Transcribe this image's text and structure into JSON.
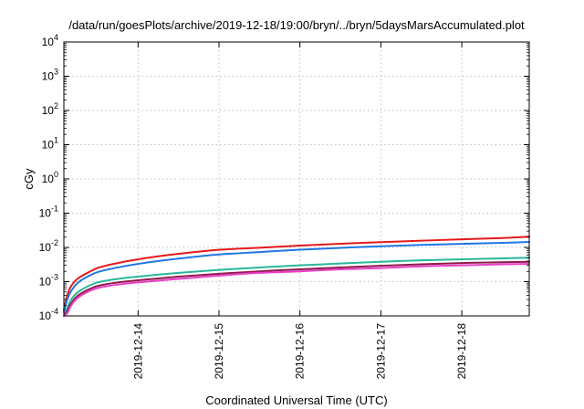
{
  "chart_data": {
    "type": "line",
    "title": "/data/run/goesPlots/archive/2019-12-18/19:00/bryn/../bryn/5daysMarsAccumulated.plot",
    "xlabel": "Coordinated Universal Time (UTC)",
    "ylabel": "cGy",
    "xlim": [
      "2019-12-13 02:00",
      "2019-12-18 20:00"
    ],
    "ylim": [
      0.0001,
      10000
    ],
    "yscale": "log",
    "grid": true,
    "legend": "none",
    "x_ticks": [
      "2019-12-14",
      "2019-12-15",
      "2019-12-16",
      "2019-12-17",
      "2019-12-18"
    ],
    "y_ticks": [
      {
        "base": "10",
        "exp": "-4",
        "value": 0.0001
      },
      {
        "base": "10",
        "exp": "-3",
        "value": 0.001
      },
      {
        "base": "10",
        "exp": "-2",
        "value": 0.01
      },
      {
        "base": "10",
        "exp": "-1",
        "value": 0.1
      },
      {
        "base": "10",
        "exp": "0",
        "value": 1
      },
      {
        "base": "10",
        "exp": "1",
        "value": 10
      },
      {
        "base": "10",
        "exp": "2",
        "value": 100
      },
      {
        "base": "10",
        "exp": "3",
        "value": 1000
      },
      {
        "base": "10",
        "exp": "4",
        "value": 10000
      }
    ],
    "x": [
      "2019-12-13 02:00",
      "2019-12-13 03:00",
      "2019-12-13 04:00",
      "2019-12-13 06:00",
      "2019-12-13 09:00",
      "2019-12-13 12:00",
      "2019-12-13 18:00",
      "2019-12-14 00:00",
      "2019-12-14 12:00",
      "2019-12-15 00:00",
      "2019-12-15 12:00",
      "2019-12-16 00:00",
      "2019-12-16 12:00",
      "2019-12-17 00:00",
      "2019-12-17 12:00",
      "2019-12-18 00:00",
      "2019-12-18 12:00",
      "2019-12-18 20:00"
    ],
    "series": [
      {
        "color": "#e41a1c",
        "values": [
          0.00015,
          0.0004,
          0.0007,
          0.0012,
          0.0018,
          0.0025,
          0.0035,
          0.0045,
          0.0065,
          0.0085,
          0.0098,
          0.0113,
          0.0128,
          0.0142,
          0.0157,
          0.0172,
          0.0188,
          0.0205
        ]
      },
      {
        "color": "#1f77e4",
        "values": [
          0.00013,
          0.0003,
          0.0005,
          0.0009,
          0.0014,
          0.0019,
          0.0026,
          0.0033,
          0.0047,
          0.0062,
          0.0073,
          0.0086,
          0.0097,
          0.0108,
          0.0118,
          0.0127,
          0.0136,
          0.0144
        ]
      },
      {
        "color": "#2ab89a",
        "values": [
          0.0001,
          0.00017,
          0.00028,
          0.00048,
          0.00072,
          0.00095,
          0.0012,
          0.0014,
          0.0018,
          0.0022,
          0.0026,
          0.003,
          0.0034,
          0.0038,
          0.0042,
          0.0045,
          0.0048,
          0.005
        ]
      },
      {
        "color": "#8e1a4a",
        "values": [
          0.0001,
          0.00014,
          0.00022,
          0.00038,
          0.00057,
          0.00075,
          0.00095,
          0.0011,
          0.0014,
          0.0017,
          0.002,
          0.0023,
          0.0026,
          0.0029,
          0.0032,
          0.0035,
          0.0037,
          0.0038
        ]
      },
      {
        "color": "#e83ec8",
        "values": [
          0.0001,
          0.00012,
          0.00019,
          0.00033,
          0.0005,
          0.00065,
          0.00082,
          0.00095,
          0.0012,
          0.0015,
          0.0018,
          0.002,
          0.0023,
          0.0025,
          0.0028,
          0.003,
          0.0032,
          0.0033
        ]
      }
    ]
  }
}
